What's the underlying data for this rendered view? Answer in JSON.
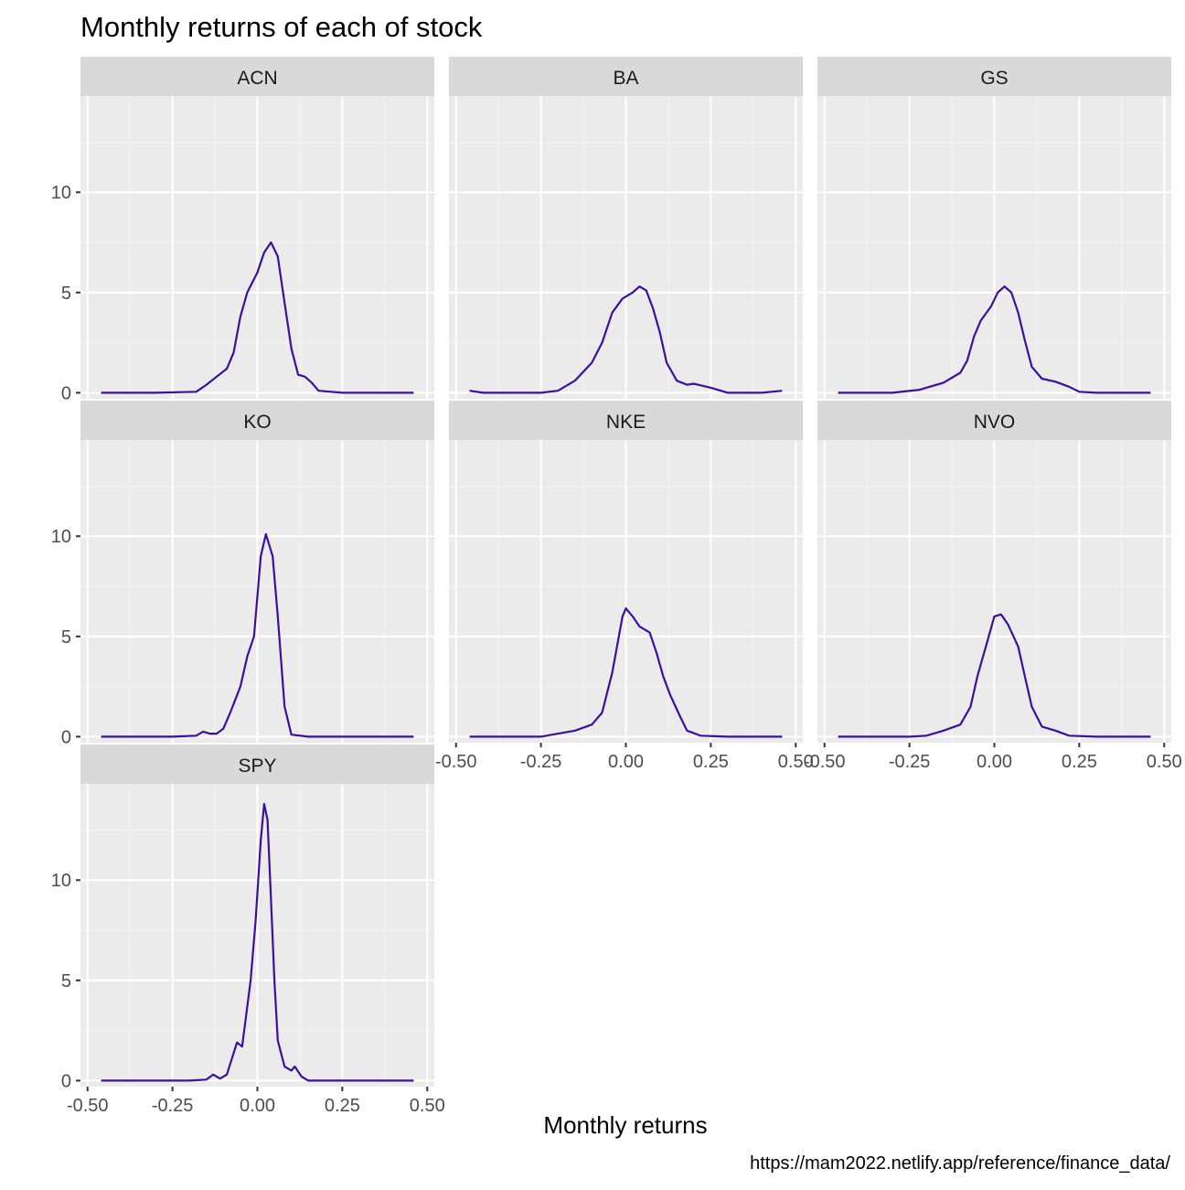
{
  "chart_data": {
    "type": "line",
    "title": "Monthly returns of each of stock",
    "xlabel": "Monthly returns",
    "ylabel": "",
    "caption": "https://mam2022.netlify.app/reference/finance_data/",
    "xlim": [
      -0.5,
      0.5
    ],
    "ylim": [
      0,
      14.5
    ],
    "x_ticks": [
      -0.5,
      -0.25,
      0.0,
      0.25,
      0.5
    ],
    "x_tick_labels": [
      "-0.50",
      "-0.25",
      "0.00",
      "0.25",
      "0.50"
    ],
    "y_ticks": [
      0,
      5,
      10
    ],
    "y_tick_labels": [
      "0",
      "5",
      "10"
    ],
    "grid": true,
    "line_color": "#3b0f9f",
    "panel_bg": "#ebebeb",
    "strip_bg": "#d9d9d9",
    "panels": [
      {
        "name": "ACN",
        "points": [
          [
            -0.46,
            0
          ],
          [
            -0.3,
            0
          ],
          [
            -0.18,
            0.05
          ],
          [
            -0.15,
            0.4
          ],
          [
            -0.12,
            0.8
          ],
          [
            -0.09,
            1.2
          ],
          [
            -0.07,
            2.0
          ],
          [
            -0.05,
            3.8
          ],
          [
            -0.03,
            5.0
          ],
          [
            0.0,
            6.0
          ],
          [
            0.02,
            7.0
          ],
          [
            0.04,
            7.5
          ],
          [
            0.06,
            6.8
          ],
          [
            0.08,
            4.5
          ],
          [
            0.1,
            2.2
          ],
          [
            0.12,
            0.9
          ],
          [
            0.14,
            0.8
          ],
          [
            0.16,
            0.5
          ],
          [
            0.18,
            0.1
          ],
          [
            0.25,
            0
          ],
          [
            0.46,
            0
          ]
        ]
      },
      {
        "name": "BA",
        "points": [
          [
            -0.46,
            0.1
          ],
          [
            -0.42,
            0
          ],
          [
            -0.25,
            0
          ],
          [
            -0.2,
            0.1
          ],
          [
            -0.15,
            0.6
          ],
          [
            -0.1,
            1.5
          ],
          [
            -0.07,
            2.5
          ],
          [
            -0.04,
            4.0
          ],
          [
            -0.01,
            4.7
          ],
          [
            0.02,
            5.0
          ],
          [
            0.04,
            5.3
          ],
          [
            0.06,
            5.1
          ],
          [
            0.08,
            4.2
          ],
          [
            0.1,
            3.0
          ],
          [
            0.12,
            1.5
          ],
          [
            0.15,
            0.6
          ],
          [
            0.18,
            0.4
          ],
          [
            0.2,
            0.45
          ],
          [
            0.25,
            0.25
          ],
          [
            0.3,
            0
          ],
          [
            0.4,
            0
          ],
          [
            0.46,
            0.1
          ]
        ]
      },
      {
        "name": "GS",
        "points": [
          [
            -0.46,
            0
          ],
          [
            -0.3,
            0
          ],
          [
            -0.22,
            0.15
          ],
          [
            -0.15,
            0.5
          ],
          [
            -0.1,
            1.0
          ],
          [
            -0.08,
            1.6
          ],
          [
            -0.06,
            2.8
          ],
          [
            -0.04,
            3.6
          ],
          [
            -0.01,
            4.3
          ],
          [
            0.01,
            5.0
          ],
          [
            0.03,
            5.3
          ],
          [
            0.05,
            5.0
          ],
          [
            0.07,
            4.0
          ],
          [
            0.09,
            2.6
          ],
          [
            0.11,
            1.3
          ],
          [
            0.14,
            0.7
          ],
          [
            0.18,
            0.55
          ],
          [
            0.22,
            0.3
          ],
          [
            0.25,
            0.05
          ],
          [
            0.3,
            0
          ],
          [
            0.46,
            0
          ]
        ]
      },
      {
        "name": "KO",
        "points": [
          [
            -0.46,
            0
          ],
          [
            -0.25,
            0
          ],
          [
            -0.18,
            0.05
          ],
          [
            -0.16,
            0.25
          ],
          [
            -0.14,
            0.15
          ],
          [
            -0.12,
            0.15
          ],
          [
            -0.1,
            0.4
          ],
          [
            -0.08,
            1.2
          ],
          [
            -0.05,
            2.5
          ],
          [
            -0.03,
            4.0
          ],
          [
            -0.01,
            5.0
          ],
          [
            0.01,
            9.0
          ],
          [
            0.025,
            10.1
          ],
          [
            0.045,
            9.0
          ],
          [
            0.06,
            6.0
          ],
          [
            0.08,
            1.5
          ],
          [
            0.1,
            0.1
          ],
          [
            0.15,
            0
          ],
          [
            0.46,
            0
          ]
        ]
      },
      {
        "name": "NKE",
        "points": [
          [
            -0.46,
            0
          ],
          [
            -0.25,
            0
          ],
          [
            -0.2,
            0.15
          ],
          [
            -0.15,
            0.3
          ],
          [
            -0.1,
            0.6
          ],
          [
            -0.07,
            1.2
          ],
          [
            -0.04,
            3.2
          ],
          [
            -0.01,
            6.0
          ],
          [
            0.0,
            6.4
          ],
          [
            0.02,
            6.0
          ],
          [
            0.04,
            5.5
          ],
          [
            0.07,
            5.2
          ],
          [
            0.09,
            4.2
          ],
          [
            0.11,
            3.0
          ],
          [
            0.13,
            2.1
          ],
          [
            0.16,
            1.0
          ],
          [
            0.18,
            0.3
          ],
          [
            0.22,
            0.05
          ],
          [
            0.3,
            0
          ],
          [
            0.46,
            0
          ]
        ]
      },
      {
        "name": "NVO",
        "points": [
          [
            -0.46,
            0
          ],
          [
            -0.25,
            0
          ],
          [
            -0.2,
            0.05
          ],
          [
            -0.15,
            0.3
          ],
          [
            -0.1,
            0.6
          ],
          [
            -0.07,
            1.5
          ],
          [
            -0.05,
            3.0
          ],
          [
            -0.02,
            4.8
          ],
          [
            0.0,
            6.0
          ],
          [
            0.02,
            6.1
          ],
          [
            0.04,
            5.6
          ],
          [
            0.07,
            4.5
          ],
          [
            0.09,
            3.0
          ],
          [
            0.11,
            1.5
          ],
          [
            0.14,
            0.5
          ],
          [
            0.18,
            0.3
          ],
          [
            0.22,
            0.05
          ],
          [
            0.3,
            0
          ],
          [
            0.46,
            0
          ]
        ]
      },
      {
        "name": "SPY",
        "points": [
          [
            -0.46,
            0
          ],
          [
            -0.2,
            0
          ],
          [
            -0.15,
            0.05
          ],
          [
            -0.13,
            0.3
          ],
          [
            -0.11,
            0.1
          ],
          [
            -0.09,
            0.3
          ],
          [
            -0.06,
            1.9
          ],
          [
            -0.045,
            1.7
          ],
          [
            -0.035,
            3.0
          ],
          [
            -0.02,
            5.0
          ],
          [
            -0.005,
            8.0
          ],
          [
            0.01,
            12.0
          ],
          [
            0.02,
            13.8
          ],
          [
            0.03,
            13.0
          ],
          [
            0.04,
            9.0
          ],
          [
            0.05,
            5.0
          ],
          [
            0.06,
            2.0
          ],
          [
            0.08,
            0.7
          ],
          [
            0.1,
            0.5
          ],
          [
            0.11,
            0.7
          ],
          [
            0.13,
            0.2
          ],
          [
            0.15,
            0
          ],
          [
            0.46,
            0
          ]
        ]
      }
    ]
  }
}
